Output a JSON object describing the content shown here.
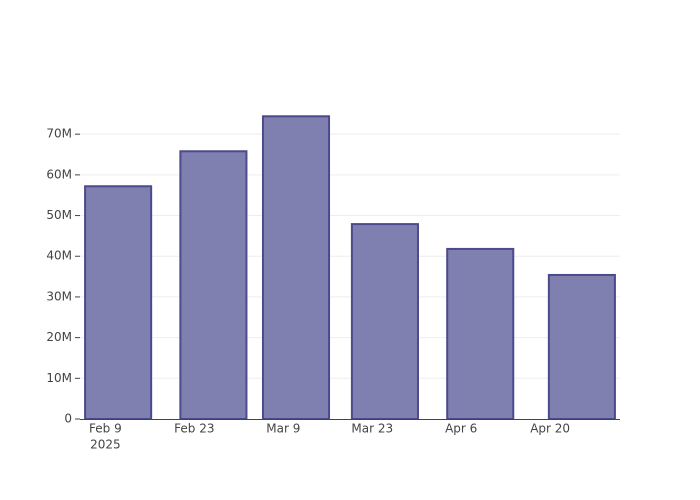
{
  "chart_data": {
    "type": "bar",
    "x": [
      "2025-02-11",
      "2025-02-26",
      "2025-03-11",
      "2025-03-25",
      "2025-04-09",
      "2025-04-25"
    ],
    "values": [
      57200000,
      65800000,
      74400000,
      47900000,
      41800000,
      35400000
    ],
    "color": "#7f7fb0",
    "line_color": "#4a4a8c",
    "xlim": [
      "2025-02-05",
      "2025-05-01"
    ],
    "xticks": [
      {
        "value": "2025-02-09",
        "label": "Feb 9"
      },
      {
        "value": "2025-02-23",
        "label": "Feb 23"
      },
      {
        "value": "2025-03-09",
        "label": "Mar 9"
      },
      {
        "value": "2025-03-23",
        "label": "Mar 23"
      },
      {
        "value": "2025-04-06",
        "label": "Apr 6"
      },
      {
        "value": "2025-04-20",
        "label": "Apr 20"
      }
    ],
    "xtick_year": "2025",
    "ylim": [
      0,
      78400000
    ],
    "yticks": [
      0,
      {
        "value": 10000000,
        "label": "10M"
      },
      {
        "value": 20000000,
        "label": "20M"
      },
      {
        "value": 30000000,
        "label": "30M"
      },
      {
        "value": 40000000,
        "label": "40M"
      },
      {
        "value": 50000000,
        "label": "50M"
      },
      {
        "value": 60000000,
        "label": "60M"
      },
      {
        "value": 70000000,
        "label": "70M"
      }
    ],
    "grid": true,
    "bar_width_days": 10.4
  }
}
